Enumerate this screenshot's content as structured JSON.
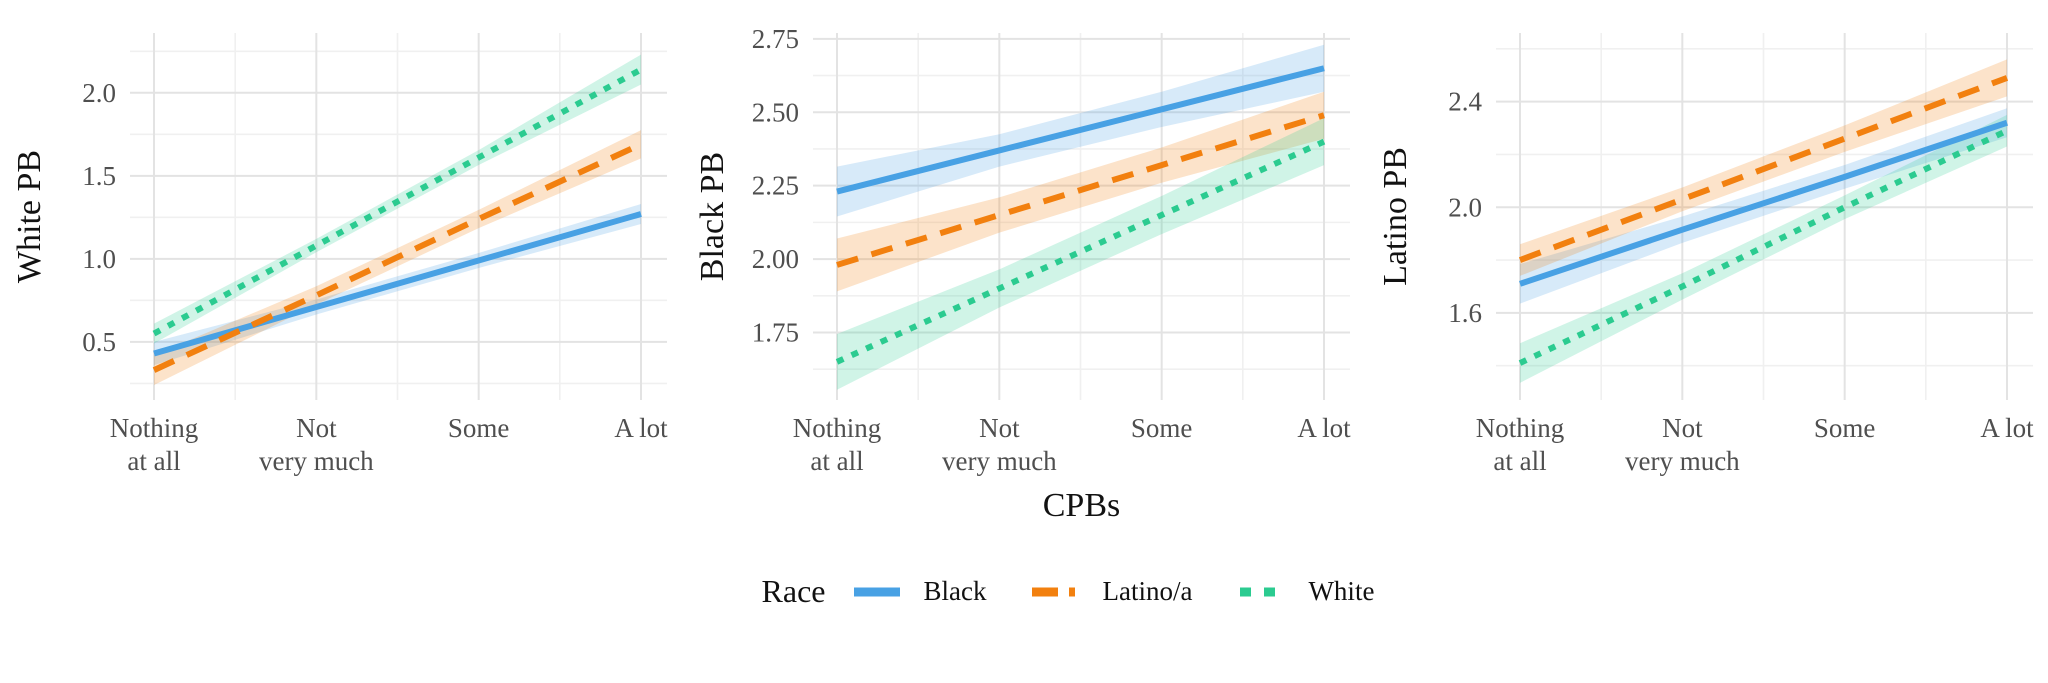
{
  "figure": {
    "xlabel": "CPBs",
    "background": "#FFFFFF"
  },
  "palette": {
    "black_series": "#48A1E4",
    "latino_series": "#F2800F",
    "white_series": "#2BCB90",
    "band_opacity": 0.22,
    "grid_major": "#E3E3E3",
    "grid_minor": "#F0F0F0",
    "tick_text": "#4F4F4F",
    "title_text": "#121212"
  },
  "x_axis": {
    "categories": [
      {
        "lines": [
          "Nothing",
          "at all"
        ]
      },
      {
        "lines": [
          "Not",
          "very much"
        ]
      },
      {
        "lines": [
          "Some"
        ]
      },
      {
        "lines": [
          "A lot"
        ]
      }
    ]
  },
  "legend": {
    "title": "Race",
    "items": [
      {
        "label": "Black",
        "series": "black_series",
        "dash": "solid"
      },
      {
        "label": "Latino/a",
        "series": "latino_series",
        "dash": "dashed"
      },
      {
        "label": "White",
        "series": "white_series",
        "dash": "dotted"
      }
    ]
  },
  "chart_data": [
    {
      "type": "line",
      "ylabel": "White PB",
      "show_xlabel": false,
      "ylim": [
        0.15,
        2.36
      ],
      "yticks": [
        {
          "v": 0.5,
          "label": "0.5"
        },
        {
          "v": 1.0,
          "label": "1.0"
        },
        {
          "v": 1.5,
          "label": "1.5"
        },
        {
          "v": 2.0,
          "label": "2.0"
        }
      ],
      "yminor": [
        0.25,
        0.75,
        1.25,
        1.75,
        2.25
      ],
      "series": [
        {
          "name": "Black",
          "series": "black_series",
          "dash": "solid",
          "y": [
            0.43,
            0.71,
            0.99,
            1.27
          ],
          "lo": [
            0.36,
            0.665,
            0.945,
            1.21
          ],
          "hi": [
            0.5,
            0.755,
            1.035,
            1.33
          ]
        },
        {
          "name": "Latino/a",
          "series": "latino_series",
          "dash": "dashed",
          "y": [
            0.33,
            0.78,
            1.24,
            1.69
          ],
          "lo": [
            0.24,
            0.725,
            1.185,
            1.605
          ],
          "hi": [
            0.42,
            0.835,
            1.295,
            1.775
          ]
        },
        {
          "name": "White",
          "series": "white_series",
          "dash": "dotted",
          "y": [
            0.55,
            1.08,
            1.61,
            2.14
          ],
          "lo": [
            0.49,
            1.04,
            1.565,
            2.05
          ],
          "hi": [
            0.61,
            1.12,
            1.655,
            2.23
          ]
        }
      ]
    },
    {
      "type": "line",
      "ylabel": "Black PB",
      "show_xlabel": true,
      "ylim": [
        1.52,
        2.77
      ],
      "yticks": [
        {
          "v": 1.75,
          "label": "1.75"
        },
        {
          "v": 2.0,
          "label": "2.00"
        },
        {
          "v": 2.25,
          "label": "2.25"
        },
        {
          "v": 2.5,
          "label": "2.50"
        },
        {
          "v": 2.75,
          "label": "2.75"
        }
      ],
      "yminor": [
        1.625,
        1.875,
        2.125,
        2.375,
        2.625
      ],
      "series": [
        {
          "name": "Black",
          "series": "black_series",
          "dash": "solid",
          "y": [
            2.23,
            2.37,
            2.51,
            2.65
          ],
          "lo": [
            2.145,
            2.315,
            2.45,
            2.57
          ],
          "hi": [
            2.315,
            2.425,
            2.57,
            2.73
          ]
        },
        {
          "name": "Latino/a",
          "series": "latino_series",
          "dash": "dashed",
          "y": [
            1.98,
            2.15,
            2.32,
            2.49
          ],
          "lo": [
            1.89,
            2.09,
            2.26,
            2.41
          ],
          "hi": [
            2.07,
            2.21,
            2.38,
            2.57
          ]
        },
        {
          "name": "White",
          "series": "white_series",
          "dash": "dotted",
          "y": [
            1.65,
            1.9,
            2.15,
            2.4
          ],
          "lo": [
            1.555,
            1.835,
            2.085,
            2.32
          ],
          "hi": [
            1.745,
            1.965,
            2.215,
            2.48
          ]
        }
      ]
    },
    {
      "type": "line",
      "ylabel": "Latino PB",
      "show_xlabel": false,
      "ylim": [
        1.27,
        2.66
      ],
      "yticks": [
        {
          "v": 1.6,
          "label": "1.6"
        },
        {
          "v": 2.0,
          "label": "2.0"
        },
        {
          "v": 2.4,
          "label": "2.4"
        }
      ],
      "yminor": [
        1.4,
        1.8,
        2.2,
        2.6
      ],
      "series": [
        {
          "name": "Black",
          "series": "black_series",
          "dash": "solid",
          "y": [
            1.71,
            1.915,
            2.115,
            2.32
          ],
          "lo": [
            1.635,
            1.865,
            2.07,
            2.265
          ],
          "hi": [
            1.785,
            1.965,
            2.16,
            2.375
          ]
        },
        {
          "name": "Latino/a",
          "series": "latino_series",
          "dash": "dashed",
          "y": [
            1.8,
            2.03,
            2.26,
            2.49
          ],
          "lo": [
            1.74,
            1.985,
            2.21,
            2.42
          ],
          "hi": [
            1.86,
            2.075,
            2.31,
            2.56
          ]
        },
        {
          "name": "White",
          "series": "white_series",
          "dash": "dotted",
          "y": [
            1.41,
            1.7,
            2.0,
            2.29
          ],
          "lo": [
            1.335,
            1.65,
            1.955,
            2.23
          ],
          "hi": [
            1.485,
            1.75,
            2.045,
            2.35
          ]
        }
      ]
    }
  ]
}
